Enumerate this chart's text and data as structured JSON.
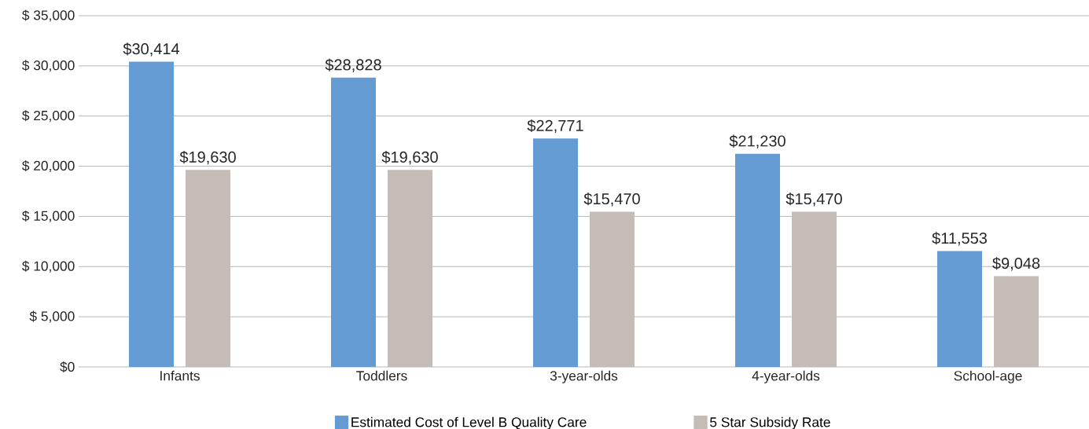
{
  "chart_data": {
    "type": "bar",
    "categories": [
      "Infants",
      "Toddlers",
      "3-year-olds",
      "4-year-olds",
      "School-age"
    ],
    "series": [
      {
        "name": "Estimated Cost of Level B Quality Care",
        "color": "#659bd3",
        "values": [
          30414,
          28828,
          22771,
          21230,
          11553
        ],
        "value_labels": [
          "$30,414",
          "$28,828",
          "$22,771",
          "$21,230",
          "$11,553"
        ]
      },
      {
        "name": "5 Star Subsidy Rate",
        "color": "#c4bcb7",
        "values": [
          19630,
          19630,
          15470,
          15470,
          9048
        ],
        "value_labels": [
          "$19,630",
          "$19,630",
          "$15,470",
          "$15,470",
          "$9,048"
        ]
      }
    ],
    "ylim": [
      0,
      35000
    ],
    "yticks": [
      {
        "value": 0,
        "label": "$0"
      },
      {
        "value": 5000,
        "label": "$ 5,000"
      },
      {
        "value": 10000,
        "label": "$ 10,000"
      },
      {
        "value": 15000,
        "label": "$ 15,000"
      },
      {
        "value": 20000,
        "label": "$ 20,000"
      },
      {
        "value": 25000,
        "label": "$ 25,000"
      },
      {
        "value": 30000,
        "label": "$ 30,000"
      },
      {
        "value": 35000,
        "label": "$ 35,000"
      }
    ],
    "grid": "y",
    "legend": "bottom"
  }
}
